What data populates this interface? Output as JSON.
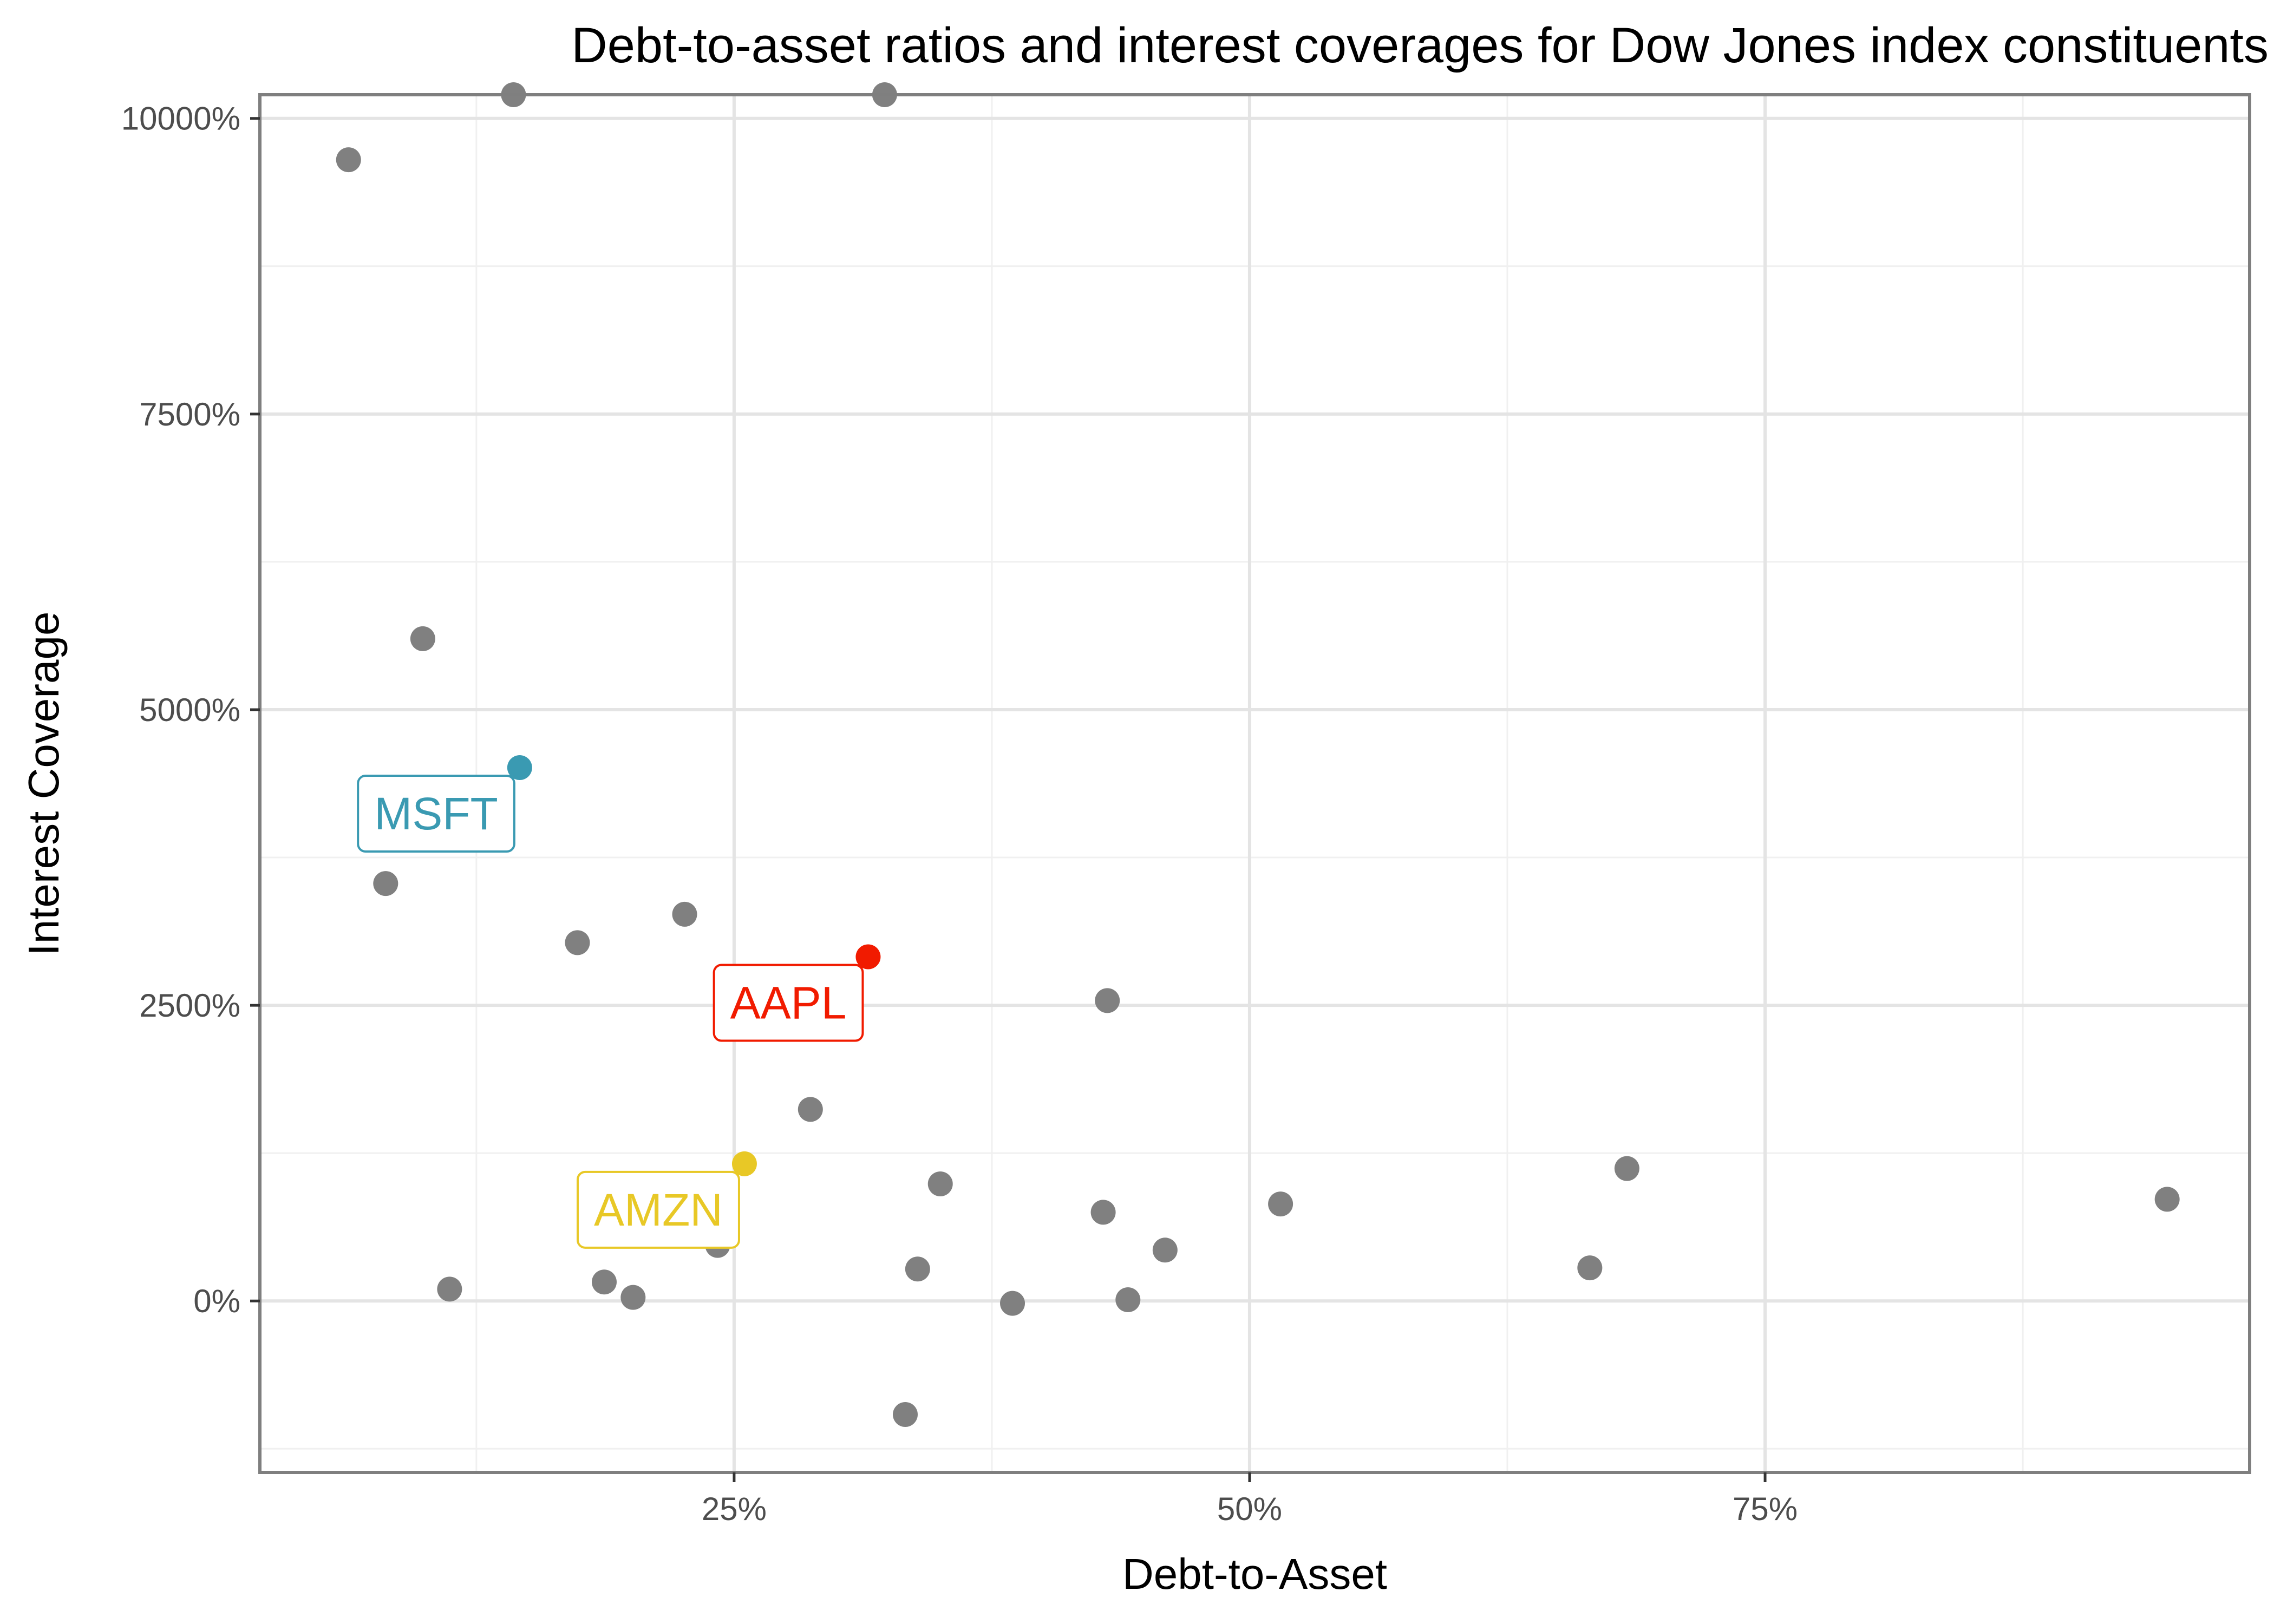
{
  "chart_data": {
    "type": "scatter",
    "title": "Debt-to-asset ratios and interest coverages for Dow Jones index constituents",
    "xlabel": "Debt-to-Asset",
    "ylabel": "Interest Coverage",
    "xlim": [
      0.02,
      0.985
    ],
    "ylim": [
      -1450,
      10200
    ],
    "x_ticks": [
      {
        "value": 0.25,
        "label": "25%"
      },
      {
        "value": 0.5,
        "label": "50%"
      },
      {
        "value": 0.75,
        "label": "75%"
      }
    ],
    "y_ticks": [
      {
        "value": 0,
        "label": "0%"
      },
      {
        "value": 2500,
        "label": "2500%"
      },
      {
        "value": 5000,
        "label": "5000%"
      },
      {
        "value": 7500,
        "label": "7500%"
      },
      {
        "value": 10000,
        "label": "10000%"
      }
    ],
    "grid": true,
    "base_color": "#808080",
    "points": [
      {
        "x": 0.063,
        "y": 9650
      },
      {
        "x": 0.143,
        "y": 10200
      },
      {
        "x": 0.323,
        "y": 10200
      },
      {
        "x": 0.099,
        "y": 5600
      },
      {
        "x": 0.081,
        "y": 3530
      },
      {
        "x": 0.174,
        "y": 3030
      },
      {
        "x": 0.226,
        "y": 3270
      },
      {
        "x": 0.431,
        "y": 2540
      },
      {
        "x": 0.287,
        "y": 1620
      },
      {
        "x": 0.35,
        "y": 990
      },
      {
        "x": 0.683,
        "y": 1120
      },
      {
        "x": 0.945,
        "y": 860
      },
      {
        "x": 0.515,
        "y": 820
      },
      {
        "x": 0.429,
        "y": 750
      },
      {
        "x": 0.459,
        "y": 430
      },
      {
        "x": 0.242,
        "y": 470
      },
      {
        "x": 0.339,
        "y": 270
      },
      {
        "x": 0.665,
        "y": 280
      },
      {
        "x": 0.187,
        "y": 160
      },
      {
        "x": 0.112,
        "y": 100
      },
      {
        "x": 0.201,
        "y": 30
      },
      {
        "x": 0.441,
        "y": 10
      },
      {
        "x": 0.385,
        "y": -20
      },
      {
        "x": 0.333,
        "y": -960
      }
    ],
    "highlights": [
      {
        "label": "MSFT",
        "x": 0.146,
        "y": 4510,
        "color": "#3a9ab2"
      },
      {
        "label": "AAPL",
        "x": 0.315,
        "y": 2910,
        "color": "#f11b00"
      },
      {
        "label": "AMZN",
        "x": 0.255,
        "y": 1160,
        "color": "#e8c826"
      }
    ]
  }
}
